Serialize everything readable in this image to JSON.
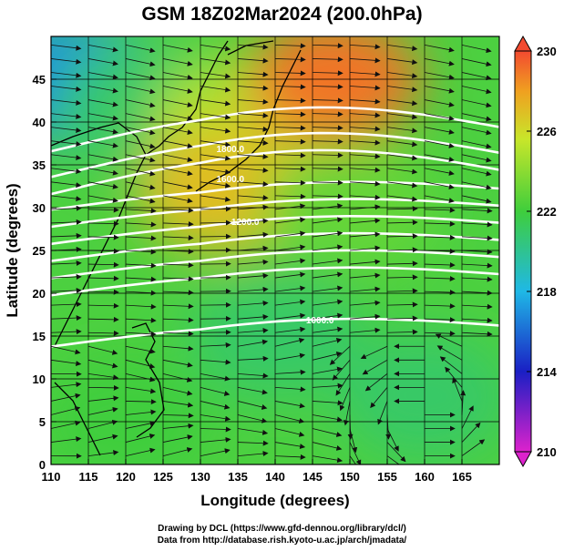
{
  "title": "GSM 18Z02Mar2024 (200.0hPa)",
  "credits": [
    "Drawing by DCL (https://www.gfd-dennou.org/library/dcl/)",
    "Data from http://database.rish.kyoto-u.ac.jp/arch/jmadata/"
  ],
  "chart_data": {
    "type": "heatmap",
    "title": "GSM 18Z02Mar2024 (200.0hPa)",
    "xlabel": "Longitude (degrees)",
    "ylabel": "Latitude  (degrees)",
    "xlim": [
      110,
      170
    ],
    "ylim": [
      0,
      50
    ],
    "xticks": [
      110,
      115,
      120,
      125,
      130,
      135,
      140,
      145,
      150,
      155,
      160,
      165
    ],
    "yticks": [
      0,
      5,
      10,
      15,
      20,
      25,
      30,
      35,
      40,
      45
    ],
    "grid": true,
    "colorbar": {
      "ticks": [
        210,
        214,
        218,
        222,
        226,
        230
      ],
      "range": [
        210,
        230
      ],
      "colors": [
        "#dd22cc",
        "#1a1fc4",
        "#1fb8e6",
        "#3fce3c",
        "#c8e62a",
        "#f0a020",
        "#f24a30"
      ]
    },
    "temperature_regions": [
      {
        "lon": 112,
        "lat": 45,
        "value": 217
      },
      {
        "lon": 122,
        "lat": 42,
        "value": 221
      },
      {
        "lon": 135,
        "lat": 40,
        "value": 225
      },
      {
        "lon": 148,
        "lat": 45,
        "value": 229
      },
      {
        "lon": 133,
        "lat": 32,
        "value": 227
      },
      {
        "lon": 150,
        "lat": 30,
        "value": 223
      },
      {
        "lon": 140,
        "lat": 15,
        "value": 221
      },
      {
        "lon": 160,
        "lat": 8,
        "value": 221
      },
      {
        "lon": 120,
        "lat": 5,
        "value": 222
      }
    ],
    "contour_labels": [
      "1800.0",
      "1600.0",
      "1200.0",
      "1000.0"
    ],
    "vortex": {
      "lon": 160,
      "lat": 6
    }
  }
}
